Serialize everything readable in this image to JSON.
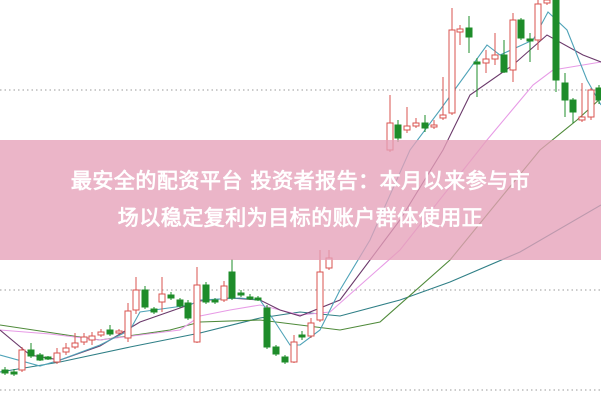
{
  "banner": {
    "line1": "最安全的配资平台 投资者报告：本月以来参与市",
    "line2": "场以稳定复利为目标的账户群体使用正"
  },
  "colors": {
    "up": "#d9534f",
    "down": "#1e8c2a",
    "banner": "#e9a6bd",
    "ma5": "#4fa3b8",
    "ma10": "#6b3a6b",
    "ma20": "#e79be6",
    "ma30": "#4f8a3a",
    "ma60": "#2f7f86"
  }
}
